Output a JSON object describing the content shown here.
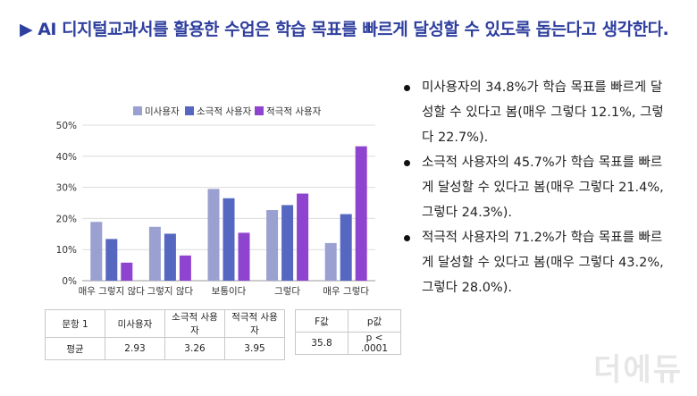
{
  "title": "▶ AI 디지털교과서를 활용한 수업은 학습 목표를 빠르게 달성할 수 있도록 돕는다고 생각한다.",
  "chart_data": {
    "type": "bar",
    "categories": [
      "매우 그렇지 않다",
      "그렇지 않다",
      "보통이다",
      "그렇다",
      "매우 그렇다"
    ],
    "series": [
      {
        "name": "미사용자",
        "color": "#9aa0d0",
        "values": [
          18.9,
          17.3,
          29.5,
          22.7,
          12.1
        ]
      },
      {
        "name": "소극적 사용자",
        "color": "#5567c0",
        "values": [
          13.4,
          15.1,
          26.5,
          24.3,
          21.4
        ]
      },
      {
        "name": "적극적 사용자",
        "color": "#8e44cf",
        "values": [
          5.8,
          8.1,
          15.4,
          28.0,
          43.2
        ]
      }
    ],
    "yticks": [
      "0%",
      "10%",
      "20%",
      "30%",
      "40%",
      "50%"
    ],
    "ylim": [
      0,
      50
    ],
    "legend": "top",
    "grid": true
  },
  "bullets": [
    "미사용자의 34.8%가 학습 목표를 빠르게 달성할 수 있다고 봄(매우 그렇다 12.1%, 그렇다 22.7%).",
    "소극적 사용자의 45.7%가 학습 목표를 빠르게 달성할 수 있다고 봄(매우 그렇다 21.4%, 그렇다 24.3%).",
    "적극적 사용자의 71.2%가 학습 목표를 빠르게 달성할 수 있다고 봄(매우 그렇다 43.2%, 그렇다 28.0%)."
  ],
  "table1": {
    "headers": [
      "문항 1",
      "미사용자",
      "소극적 사용자",
      "적극적 사용자"
    ],
    "row": [
      "평균",
      "2.93",
      "3.26",
      "3.95"
    ]
  },
  "table2": {
    "headers": [
      "F값",
      "p값"
    ],
    "row": [
      "35.8",
      "p < .0001"
    ]
  },
  "logo": "더에듀"
}
